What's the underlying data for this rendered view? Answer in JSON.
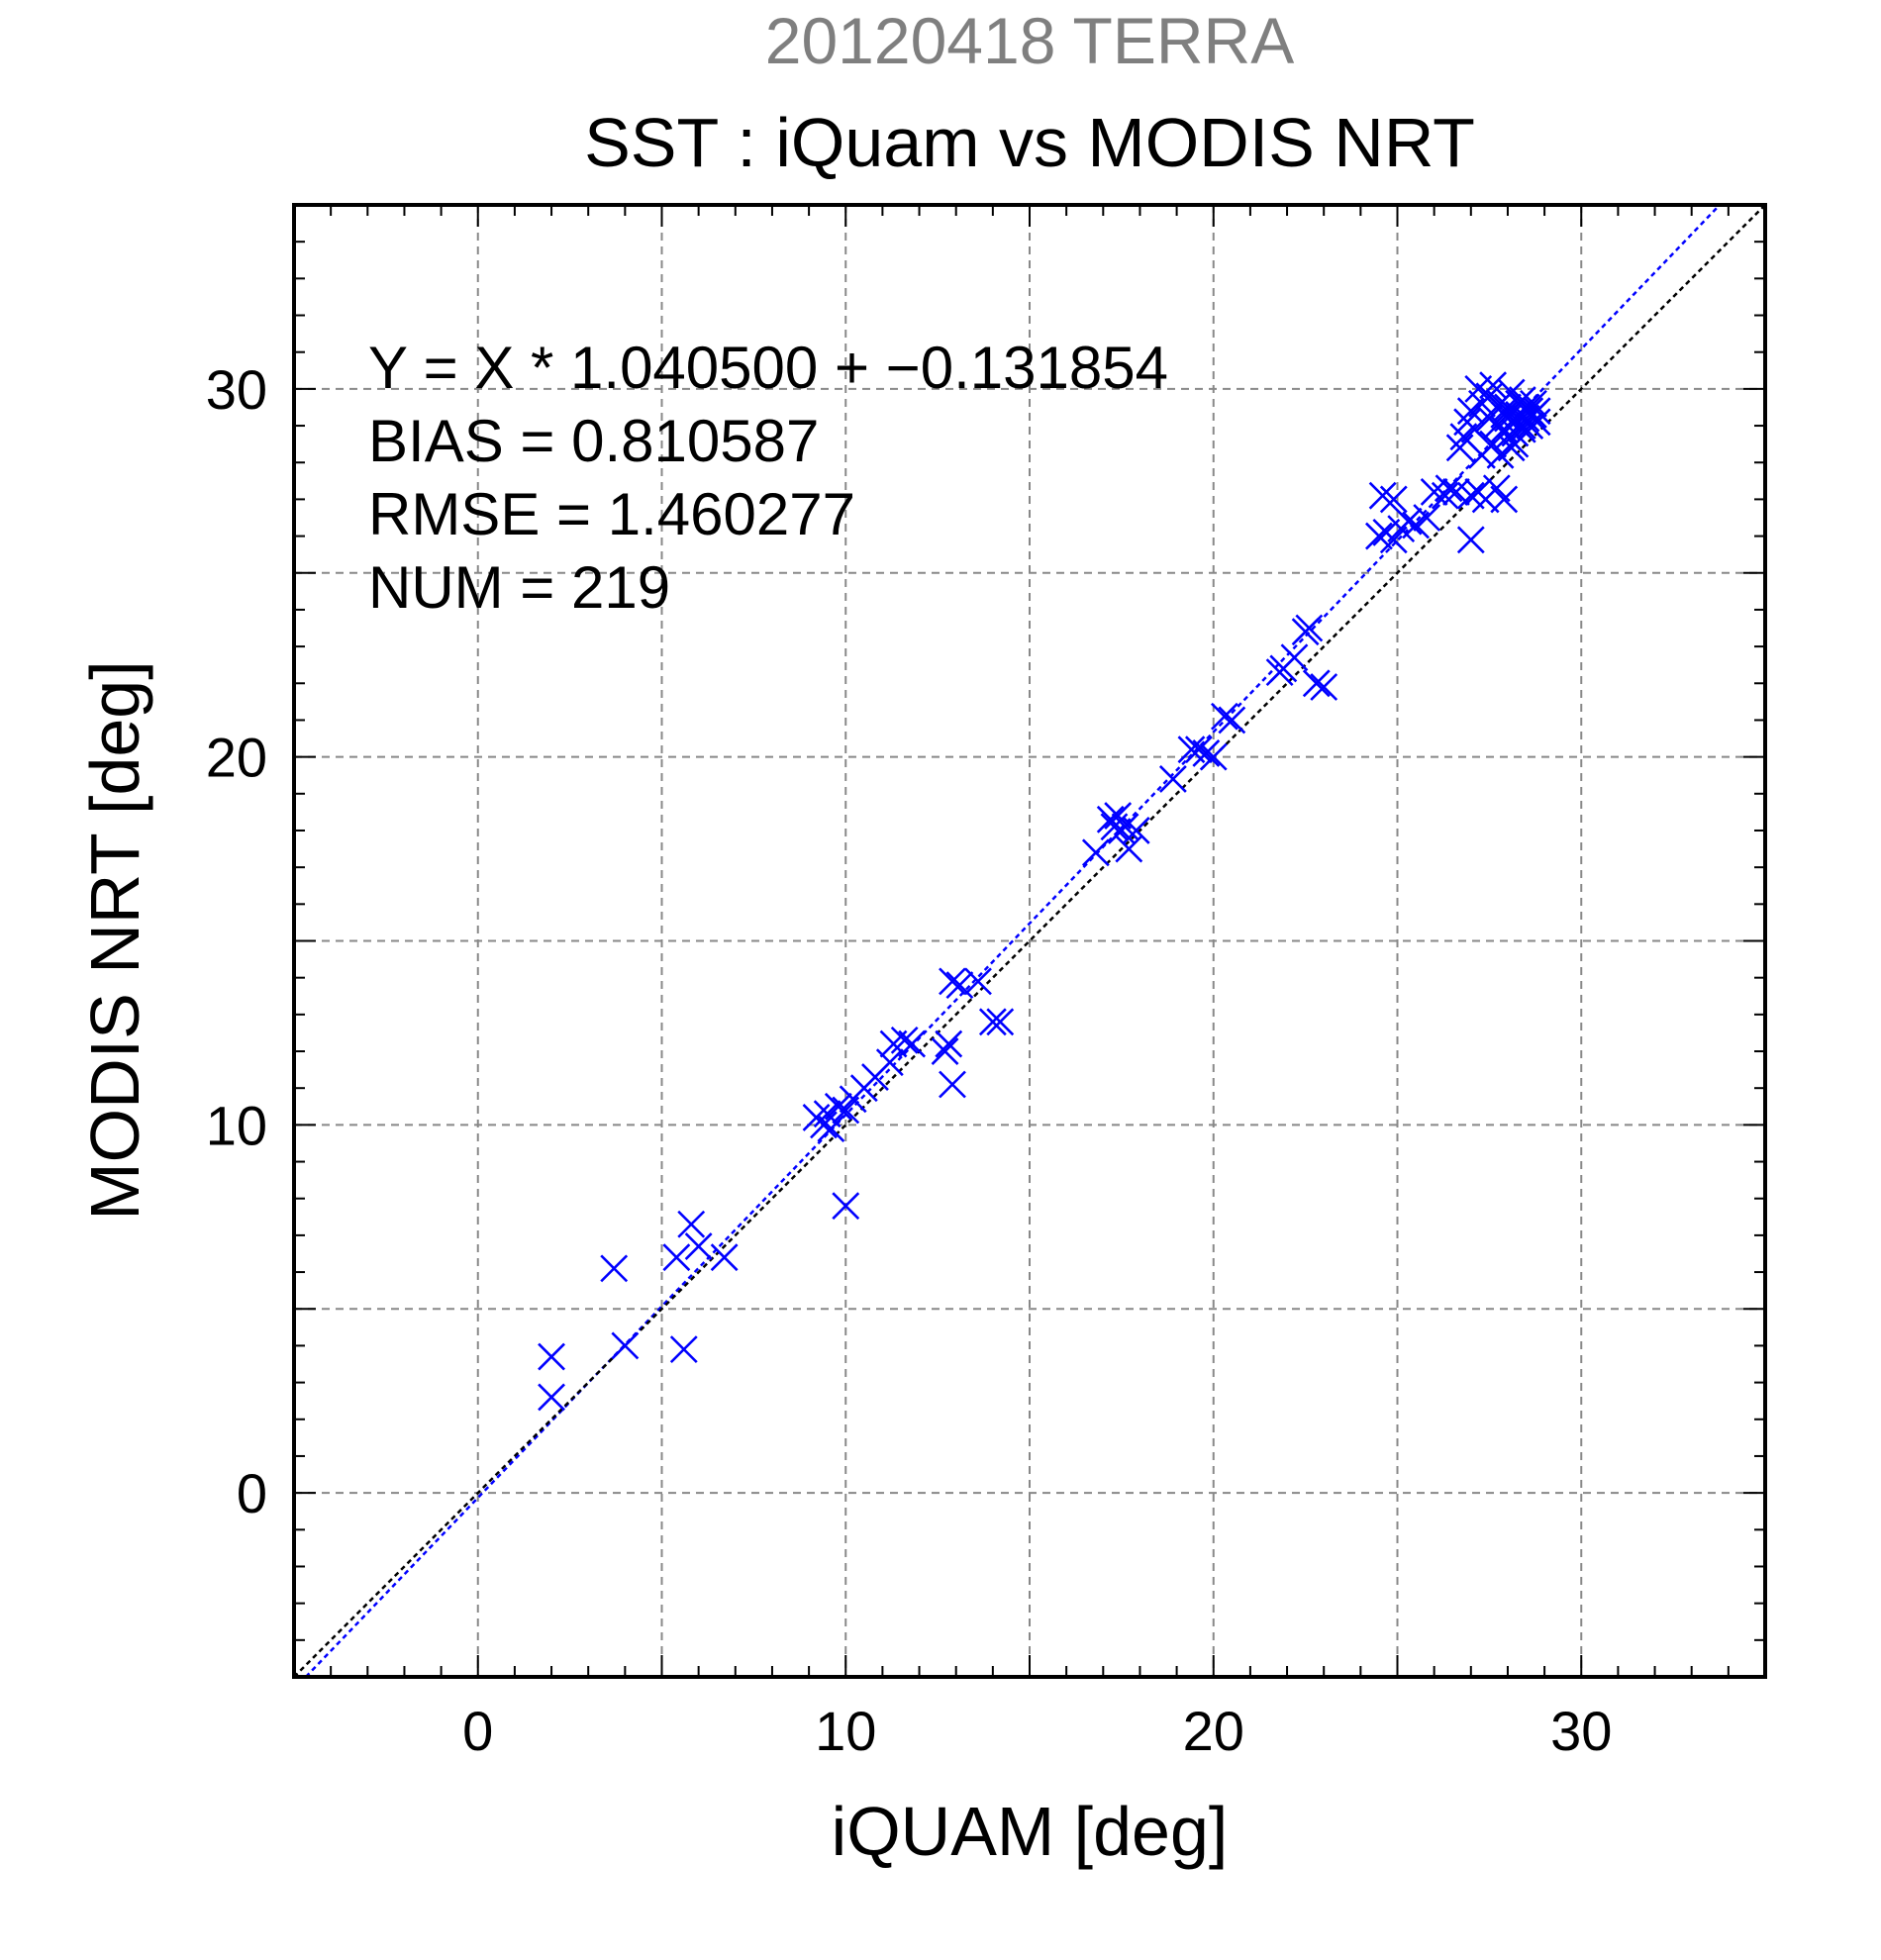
{
  "chart_data": {
    "type": "scatter",
    "supertitle": "20120418 TERRA",
    "title": "SST : iQuam vs MODIS NRT",
    "xlabel": "iQUAM [deg]",
    "ylabel": "MODIS NRT [deg]",
    "xlim": [
      -5,
      35
    ],
    "ylim": [
      -5,
      35
    ],
    "xticks": [
      0,
      10,
      20,
      30
    ],
    "yticks": [
      0,
      10,
      20,
      30
    ],
    "grid": true,
    "annotations": [
      "Y = X * 1.040500 + −0.131854",
      "BIAS = 0.810587",
      "RMSE = 1.460277",
      "NUM = 219"
    ],
    "colors": {
      "points": "#0000ff",
      "fit_line": "#0000ff",
      "identity_line": "#000000",
      "grid": "#888888",
      "supertitle": "#7f7f7f"
    },
    "lines": [
      {
        "kind": "fit",
        "slope": 1.0405,
        "intercept": -0.131854
      },
      {
        "kind": "identity",
        "slope": 1.0,
        "intercept": 0.0
      }
    ],
    "series": [
      {
        "marker": "x",
        "points": [
          [
            2.0,
            3.7
          ],
          [
            2.0,
            2.6
          ],
          [
            3.7,
            6.1
          ],
          [
            4.0,
            4.0
          ],
          [
            5.4,
            6.4
          ],
          [
            5.8,
            7.3
          ],
          [
            6.0,
            6.7
          ],
          [
            6.7,
            6.4
          ],
          [
            5.6,
            3.9
          ],
          [
            10.0,
            7.8
          ],
          [
            9.2,
            10.2
          ],
          [
            9.4,
            10.0
          ],
          [
            9.5,
            10.3
          ],
          [
            9.6,
            9.9
          ],
          [
            9.8,
            10.5
          ],
          [
            10.0,
            10.4
          ],
          [
            10.2,
            10.7
          ],
          [
            10.5,
            11.0
          ],
          [
            10.8,
            11.3
          ],
          [
            11.2,
            11.7
          ],
          [
            11.3,
            12.2
          ],
          [
            11.6,
            12.3
          ],
          [
            11.8,
            12.2
          ],
          [
            12.7,
            12.0
          ],
          [
            12.8,
            12.2
          ],
          [
            12.9,
            11.1
          ],
          [
            12.9,
            13.9
          ],
          [
            13.1,
            13.8
          ],
          [
            13.6,
            13.9
          ],
          [
            14.0,
            12.8
          ],
          [
            14.2,
            12.8
          ],
          [
            16.8,
            17.4
          ],
          [
            17.2,
            18.3
          ],
          [
            17.3,
            18.1
          ],
          [
            17.4,
            18.4
          ],
          [
            17.5,
            18.0
          ],
          [
            17.6,
            18.1
          ],
          [
            17.7,
            17.5
          ],
          [
            17.9,
            18.0
          ],
          [
            18.9,
            19.4
          ],
          [
            19.4,
            20.2
          ],
          [
            19.6,
            20.2
          ],
          [
            19.8,
            20.1
          ],
          [
            20.0,
            20.0
          ],
          [
            20.3,
            21.1
          ],
          [
            20.5,
            21.0
          ],
          [
            21.8,
            22.3
          ],
          [
            21.9,
            22.4
          ],
          [
            22.2,
            22.7
          ],
          [
            22.5,
            23.4
          ],
          [
            22.6,
            23.5
          ],
          [
            22.8,
            22.0
          ],
          [
            23.0,
            21.9
          ],
          [
            24.5,
            26.0
          ],
          [
            24.6,
            27.1
          ],
          [
            24.7,
            26.1
          ],
          [
            24.9,
            25.9
          ],
          [
            24.9,
            27.0
          ],
          [
            25.1,
            26.2
          ],
          [
            25.3,
            26.4
          ],
          [
            25.5,
            26.3
          ],
          [
            25.8,
            26.5
          ],
          [
            26.0,
            27.2
          ],
          [
            26.3,
            27.1
          ],
          [
            26.4,
            27.3
          ],
          [
            26.6,
            27.2
          ],
          [
            26.7,
            28.4
          ],
          [
            26.8,
            28.7
          ],
          [
            26.9,
            29.1
          ],
          [
            27.0,
            27.1
          ],
          [
            27.0,
            25.9
          ],
          [
            27.0,
            29.4
          ],
          [
            27.1,
            28.9
          ],
          [
            27.2,
            30.0
          ],
          [
            27.2,
            27.2
          ],
          [
            27.3,
            28.2
          ],
          [
            27.3,
            29.6
          ],
          [
            27.4,
            27.0
          ],
          [
            27.5,
            29.2
          ],
          [
            27.5,
            29.8
          ],
          [
            27.6,
            28.5
          ],
          [
            27.6,
            30.1
          ],
          [
            27.7,
            27.3
          ],
          [
            27.7,
            29.0
          ],
          [
            27.8,
            28.2
          ],
          [
            27.8,
            29.6
          ],
          [
            27.9,
            29.3
          ],
          [
            27.9,
            27.0
          ],
          [
            28.0,
            28.7
          ],
          [
            28.0,
            29.5
          ],
          [
            28.1,
            29.9
          ],
          [
            28.1,
            28.4
          ],
          [
            28.2,
            29.1
          ],
          [
            28.2,
            28.8
          ],
          [
            28.3,
            29.6
          ],
          [
            28.3,
            29.3
          ],
          [
            28.4,
            29.0
          ],
          [
            28.4,
            29.7
          ],
          [
            28.5,
            29.2
          ],
          [
            28.5,
            29.5
          ],
          [
            28.6,
            29.4
          ],
          [
            28.6,
            29.0
          ],
          [
            28.7,
            29.3
          ],
          [
            28.7,
            29.6
          ],
          [
            28.8,
            29.1
          ],
          [
            28.8,
            29.4
          ],
          [
            28.2,
            28.5
          ],
          [
            28.4,
            28.9
          ],
          [
            27.9,
            28.9
          ],
          [
            28.0,
            29.2
          ]
        ]
      }
    ]
  }
}
